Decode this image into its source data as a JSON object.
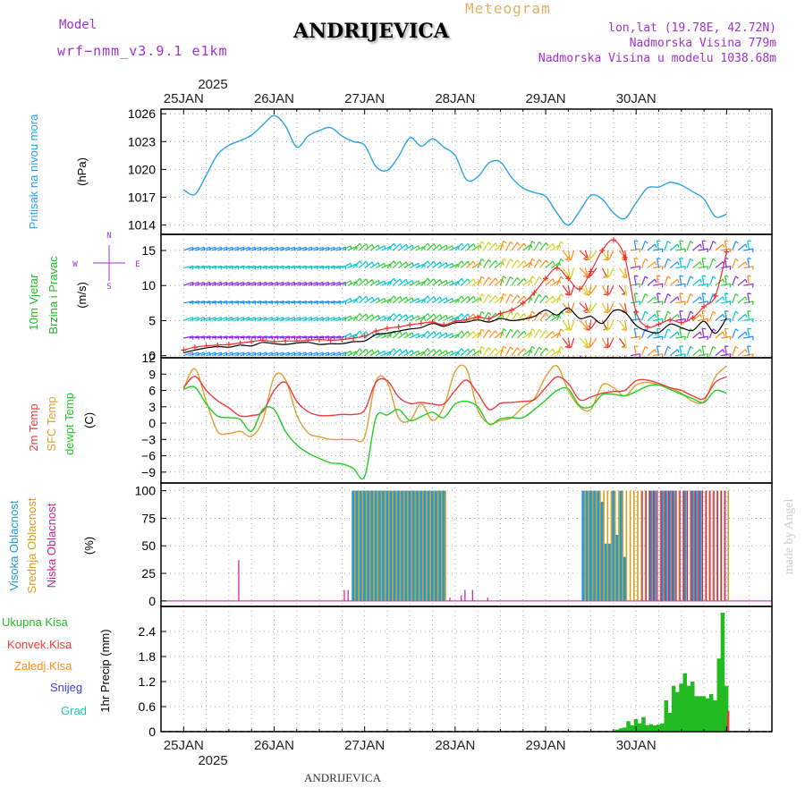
{
  "header": {
    "model_label": "Model",
    "model_name": "wrf−nmm_v3.9.1  e1km",
    "title": "ANDRIJEVICA",
    "product": "Meteogram",
    "lonlat": "lon,lat (19.78E, 42.72N)",
    "altitude": "Nadmorska Visina 779m",
    "model_altitude": "Nadmorska Visina u modelu 1038.68m",
    "footer_station": "ANDRIJEVICA",
    "credit": "made by Angel",
    "top_year": "2025",
    "bottom_year": "2025"
  },
  "colors": {
    "pressure": "#2aa3e8",
    "t2m": "#ee3b3b",
    "sfc": "#e0a030",
    "dew": "#22cc22",
    "high_cloud": "#1e9be0",
    "mid_cloud": "#d4a020",
    "low_cloud": "#c81e8c",
    "total_precip": "#22bb22",
    "conv_precip": "#ee3b3b",
    "wind_purple": "#8a2be2",
    "wind_blue": "#1e90ff",
    "wind_cyan": "#00c8d0",
    "wind_green": "#32cd32",
    "wind_yellow": "#d2d21e",
    "wind_orange": "#ff8c1a",
    "wind_red": "#ee3030"
  },
  "chart_data": [
    {
      "type": "line",
      "panel": "pressure",
      "ylabel": "Pritisak na nivou mora",
      "unit": "(hPa)",
      "ylim": [
        1013,
        1026.5
      ],
      "yticks": [
        1014,
        1017,
        1020,
        1023,
        1026
      ],
      "x_dates": [
        "25JAN",
        "26JAN",
        "27JAN",
        "28JAN",
        "29JAN",
        "30JAN"
      ],
      "x_hours": [
        0,
        3,
        6,
        9,
        12,
        15,
        18,
        21,
        24,
        27,
        30,
        33,
        36,
        39,
        42,
        45,
        48,
        51,
        54,
        57,
        60,
        63,
        66,
        69,
        72,
        75,
        78,
        81,
        84,
        87,
        90,
        93,
        96,
        99,
        102,
        105,
        108,
        111,
        114,
        117,
        120,
        123,
        126,
        129,
        132,
        135,
        138,
        141,
        144
      ],
      "series": [
        {
          "name": "",
          "values": [
            1017.8,
            1017.3,
            1019.4,
            1021.6,
            1022.6,
            1023.1,
            1023.7,
            1024.8,
            1025.8,
            1024.7,
            1022.4,
            1023.6,
            1024.2,
            1024.5,
            1023.6,
            1023.0,
            1022.6,
            1020.3,
            1019.9,
            1021.4,
            1023.4,
            1022.5,
            1023.3,
            1022.4,
            1021.5,
            1018.9,
            1019.2,
            1020.7,
            1020.8,
            1019.1,
            1018.0,
            1017.5,
            1017.1,
            1015.3,
            1014.0,
            1015.5,
            1017.2,
            1016.8,
            1015.3,
            1014.7,
            1016.4,
            1018.0,
            1018.1,
            1018.6,
            1018.3,
            1017.6,
            1016.8,
            1014.9,
            1015.2
          ]
        }
      ]
    },
    {
      "type": "line",
      "panel": "wind",
      "ylabel": "10m Vjetar Brzina i Pravac",
      "unit": "(m/s)",
      "compass": [
        "N",
        "W",
        "E",
        "S"
      ],
      "ylim": [
        -0.3,
        17.3
      ],
      "yticks": [
        0,
        5,
        10,
        15
      ],
      "barb_rows_ms": [
        0,
        2.5,
        5,
        7.5,
        10,
        12.5,
        15
      ],
      "series": [
        {
          "name": "",
          "values": [
            0.4,
            0.8,
            1.1,
            1.3,
            1.2,
            1.5,
            1.4,
            1.9,
            1.7,
            1.6,
            1.8,
            1.9,
            1.6,
            1.7,
            1.7,
            2.0,
            2.1,
            3.0,
            3.2,
            3.5,
            3.8,
            4.0,
            4.6,
            4.2,
            4.7,
            4.8,
            5.1,
            4.8,
            5.3,
            5.0,
            5.2,
            5.6,
            6.5,
            5.8,
            6.8,
            5.3,
            5.6,
            4.6,
            6.4,
            6.2,
            4.3,
            3.5,
            3.3,
            4.5,
            4.0,
            3.6,
            4.9,
            3.2,
            5.4
          ]
        },
        {
          "name": "",
          "values": [
            0.8,
            1.2,
            1.4,
            1.5,
            1.6,
            1.8,
            2.0,
            2.2,
            2.0,
            2.1,
            2.1,
            2.2,
            2.3,
            2.2,
            2.3,
            2.5,
            2.8,
            3.5,
            3.9,
            4.1,
            4.4,
            4.6,
            4.8,
            4.4,
            4.9,
            5.1,
            5.5,
            5.3,
            6.0,
            6.5,
            7.5,
            9.0,
            11.0,
            12.5,
            11.0,
            9.5,
            12.0,
            15.0,
            16.5,
            14.0,
            6.2,
            4.1,
            4.5,
            5.1,
            4.7,
            5.4,
            7.0,
            8.5,
            14.8
          ]
        }
      ]
    },
    {
      "type": "line",
      "panel": "temperature",
      "ylabel": [
        "2m Temp",
        "SFC Temp",
        "dewpt Temp"
      ],
      "unit": "(C)",
      "ylim": [
        -11,
        12
      ],
      "yticks": [
        -9,
        -6,
        -3,
        0,
        3,
        6,
        9,
        12
      ],
      "series": [
        {
          "name": "2m Temp",
          "values": [
            6.5,
            8.6,
            6.0,
            4.1,
            2.8,
            1.3,
            1.4,
            2.1,
            6.0,
            7.5,
            4.0,
            2.1,
            1.4,
            1.4,
            1.6,
            1.6,
            2.4,
            7.5,
            7.8,
            4.8,
            3.6,
            3.8,
            3.5,
            3.5,
            6.0,
            7.9,
            5.5,
            2.5,
            3.6,
            3.8,
            4.0,
            4.3,
            6.5,
            8.5,
            7.3,
            4.3,
            4.8,
            5.5,
            5.8,
            6.0,
            7.8,
            7.9,
            7.3,
            6.5,
            6.0,
            5.0,
            4.5,
            7.5,
            8.5
          ]
        },
        {
          "name": "SFC Temp",
          "values": [
            6.3,
            10.0,
            4.0,
            -1.5,
            -1.9,
            -1.5,
            -2.4,
            0.5,
            8.5,
            8.0,
            1.5,
            -1.8,
            -2.5,
            -3.0,
            -3.0,
            -3.0,
            -2.5,
            7.7,
            7.5,
            1.0,
            0.5,
            3.5,
            0.5,
            3.0,
            9.5,
            10.0,
            2.5,
            -0.1,
            0.5,
            1.0,
            3.0,
            4.5,
            8.5,
            10.5,
            6.0,
            3.0,
            2.5,
            7.0,
            6.5,
            5.0,
            7.0,
            7.5,
            7.0,
            6.5,
            5.5,
            4.0,
            4.0,
            8.5,
            10.5
          ]
        },
        {
          "name": "dewpt Temp",
          "values": [
            6.2,
            6.6,
            3.5,
            1.3,
            1.0,
            0.7,
            -1.5,
            2.5,
            2.5,
            -1.5,
            -4.0,
            -5.5,
            -6.5,
            -7.3,
            -7.5,
            -8.3,
            -9.8,
            1.0,
            1.5,
            2.5,
            0.5,
            1.2,
            2.0,
            1.0,
            3.5,
            4.0,
            3.0,
            -0.2,
            0.8,
            1.0,
            1.0,
            2.5,
            4.2,
            6.0,
            6.3,
            3.2,
            3.0,
            5.2,
            5.3,
            5.0,
            5.8,
            6.8,
            7.0,
            6.2,
            5.3,
            4.5,
            3.8,
            6.0,
            5.5
          ]
        }
      ]
    },
    {
      "type": "bar",
      "panel": "clouds",
      "ylabel": [
        "Visoka Oblacnost",
        "Srednja Oblacnost",
        "Niska Oblacnost"
      ],
      "unit": "(%)",
      "ylim": [
        -5,
        107
      ],
      "yticks": [
        0,
        25,
        50,
        75,
        100
      ],
      "bar_hours": [
        0,
        1,
        2,
        3,
        4,
        5,
        6,
        7,
        8,
        9,
        10,
        11,
        12,
        13,
        14,
        15,
        16,
        17,
        18,
        19,
        20,
        21,
        22,
        23,
        24,
        25,
        26,
        27,
        28,
        29,
        30,
        31,
        32,
        33,
        34,
        35,
        36,
        37,
        38,
        39,
        40,
        41,
        42,
        43,
        44,
        45,
        46,
        47,
        48,
        49,
        50,
        51,
        52,
        53,
        54,
        55,
        56,
        57,
        58,
        59,
        60,
        61,
        62,
        63,
        64,
        65,
        66,
        67,
        68,
        69,
        70,
        71,
        72,
        73,
        74,
        75,
        76,
        77,
        78,
        79,
        80,
        81,
        82,
        83,
        84,
        85,
        86,
        87,
        88,
        89,
        90,
        91,
        92,
        93,
        94,
        95,
        96,
        97,
        98,
        99,
        100,
        101,
        102,
        103,
        104,
        105,
        106,
        107,
        108,
        109,
        110,
        111,
        112,
        113,
        114,
        115,
        116,
        117,
        118,
        119,
        120,
        121,
        122,
        123,
        124,
        125,
        126,
        127,
        128,
        129,
        130,
        131,
        132,
        133,
        134,
        135,
        136,
        137,
        138,
        139,
        140,
        141,
        142,
        143,
        144
      ],
      "series": [
        {
          "name": "Visoka Oblacnost",
          "values": [
            0,
            0,
            0,
            0,
            0,
            0,
            0,
            0,
            0,
            0,
            0,
            0,
            0,
            0,
            0,
            0,
            0,
            0,
            0,
            0,
            0,
            0,
            0,
            0,
            0,
            0,
            0,
            0,
            0,
            0,
            0,
            0,
            0,
            0,
            0,
            0,
            0,
            0,
            0,
            0,
            0,
            0,
            0,
            0,
            0,
            100,
            100,
            100,
            100,
            100,
            100,
            100,
            100,
            100,
            100,
            100,
            100,
            100,
            100,
            100,
            100,
            100,
            100,
            100,
            100,
            100,
            100,
            100,
            100,
            100,
            0,
            0,
            0,
            0,
            0,
            0,
            0,
            0,
            0,
            0,
            0,
            0,
            0,
            0,
            0,
            0,
            0,
            0,
            0,
            0,
            0,
            0,
            0,
            0,
            0,
            0,
            0,
            0,
            0,
            0,
            0,
            0,
            0,
            0,
            0,
            0,
            100,
            100,
            100,
            100,
            100,
            90,
            52,
            52,
            100,
            60,
            100,
            40,
            0,
            0,
            0,
            0,
            0,
            0,
            100,
            100,
            0,
            100,
            100,
            100,
            100,
            0,
            0,
            100,
            0,
            100,
            100,
            100,
            0,
            0,
            0,
            0,
            0,
            0,
            0
          ]
        },
        {
          "name": "Srednja Oblacnost",
          "values": [
            0,
            0,
            0,
            0,
            0,
            0,
            0,
            0,
            0,
            0,
            0,
            0,
            0,
            0,
            0,
            0,
            0,
            0,
            0,
            0,
            0,
            0,
            0,
            0,
            0,
            0,
            0,
            0,
            0,
            0,
            0,
            0,
            0,
            0,
            0,
            0,
            0,
            0,
            0,
            0,
            0,
            0,
            0,
            0,
            0,
            100,
            100,
            100,
            100,
            100,
            100,
            100,
            100,
            100,
            100,
            100,
            100,
            100,
            100,
            100,
            100,
            100,
            100,
            100,
            100,
            100,
            100,
            100,
            100,
            100,
            0,
            0,
            0,
            0,
            0,
            0,
            0,
            0,
            0,
            0,
            0,
            0,
            0,
            0,
            0,
            0,
            0,
            0,
            0,
            0,
            0,
            0,
            0,
            0,
            0,
            0,
            0,
            0,
            0,
            0,
            0,
            0,
            0,
            0,
            0,
            0,
            100,
            100,
            100,
            100,
            100,
            100,
            100,
            100,
            100,
            100,
            100,
            100,
            100,
            100,
            100,
            100,
            100,
            100,
            100,
            100,
            100,
            100,
            100,
            100,
            100,
            100,
            100,
            100,
            100,
            100,
            100,
            100,
            100,
            100,
            100,
            100,
            100,
            100,
            100
          ]
        },
        {
          "name": "Niska Oblacnost",
          "values": [
            0,
            0,
            0,
            0,
            0,
            0,
            0,
            0,
            0,
            0,
            0,
            0,
            0,
            0,
            0,
            37,
            0,
            0,
            0,
            0,
            0,
            0,
            0,
            0,
            0,
            0,
            0,
            0,
            0,
            0,
            0,
            0,
            0,
            0,
            0,
            0,
            0,
            0,
            0,
            0,
            0,
            0,
            0,
            10,
            10,
            0,
            0,
            0,
            0,
            0,
            0,
            0,
            0,
            0,
            0,
            0,
            0,
            0,
            0,
            0,
            0,
            0,
            0,
            0,
            0,
            0,
            0,
            0,
            0,
            0,
            0,
            3,
            0,
            0,
            5,
            10,
            0,
            10,
            0,
            0,
            0,
            3,
            0,
            0,
            0,
            0,
            0,
            0,
            0,
            0,
            0,
            0,
            0,
            0,
            0,
            0,
            0,
            0,
            0,
            0,
            0,
            0,
            0,
            0,
            0,
            0,
            0,
            0,
            0,
            0,
            0,
            0,
            0,
            0,
            0,
            0,
            0,
            0,
            0,
            0,
            0,
            0,
            100,
            100,
            100,
            100,
            100,
            100,
            100,
            100,
            100,
            100,
            100,
            100,
            100,
            100,
            100,
            100,
            100,
            100,
            100,
            100,
            100,
            100,
            100
          ]
        }
      ]
    },
    {
      "type": "bar",
      "panel": "precip",
      "ylabel": "1hr Precip",
      "unit": "(mm)",
      "legend": [
        "Ukupna Kisa",
        "Konvek.Kisa",
        "Zaledj.Kisa",
        "Snijeg",
        "Grad"
      ],
      "ylim": [
        0,
        3.0
      ],
      "yticks": [
        0,
        0.6,
        1.2,
        1.8,
        2.4
      ],
      "bar_hours": [
        115,
        116,
        117,
        118,
        119,
        120,
        121,
        122,
        123,
        124,
        125,
        126,
        127,
        128,
        129,
        130,
        131,
        132,
        133,
        134,
        135,
        136,
        137,
        138,
        139,
        140,
        141,
        142,
        143,
        144
      ],
      "series": [
        {
          "name": "Ukupna Kisa",
          "values": [
            0.05,
            0.08,
            0.1,
            0.25,
            0.15,
            0.3,
            0.2,
            0.35,
            0.15,
            0.18,
            0.15,
            0.17,
            0.2,
            0.75,
            0.45,
            1.1,
            0.95,
            1.15,
            1.4,
            1.1,
            1.2,
            0.85,
            0.85,
            0.85,
            0.8,
            0.9,
            0.75,
            1.75,
            2.85,
            1.1
          ]
        },
        {
          "name": "Konvek.Kisa",
          "values": [
            0,
            0,
            0,
            0,
            0,
            0,
            0,
            0,
            0,
            0,
            0,
            0,
            0,
            0,
            0,
            0,
            0,
            0,
            0,
            0,
            0,
            0,
            0,
            0,
            0,
            0,
            0,
            0,
            0,
            0.5
          ]
        }
      ]
    }
  ]
}
